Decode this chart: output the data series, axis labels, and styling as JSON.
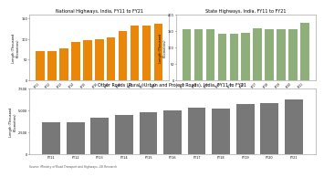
{
  "nh_title": "National Highways, India, FY11 to FY21",
  "sh_title": "State Highways, India, FY11 to FY21",
  "or_title": "Other Roads (Rural,  Urban and Project Roads), India, FY11 to FY21",
  "source": "Source: Ministry of Road Transport and Highways, LSI Research",
  "years": [
    "FY11",
    "FY12",
    "FY13",
    "FY14",
    "FY15",
    "FY16",
    "FY17",
    "FY18",
    "FY19",
    "FY20",
    "FY21"
  ],
  "nh_values": [
    70,
    70,
    77,
    92,
    97,
    100,
    105,
    120,
    132,
    133,
    137
  ],
  "sh_values": [
    155,
    155,
    156,
    141,
    142,
    143,
    158,
    154,
    154,
    155,
    175
  ],
  "or_values": [
    3700,
    3700,
    4200,
    4500,
    4800,
    5000,
    5300,
    5200,
    5700,
    5800,
    6200
  ],
  "nh_color": "#E8870A",
  "sh_color": "#8FAF7A",
  "or_color": "#787878",
  "ylabel_nh": "Length (Thousand\nKilometres)",
  "ylabel_sh": "Length (Thousand\nKilometres)",
  "ylabel_or": "Length (Thousand\nKilometres)",
  "nh_ylim": [
    0,
    160
  ],
  "sh_ylim": [
    0,
    200
  ],
  "or_ylim": [
    0,
    7500
  ],
  "nh_yticks": [
    0,
    50,
    100,
    150
  ],
  "sh_yticks": [
    0,
    50,
    100,
    150,
    200
  ],
  "or_yticks": [
    0,
    2500,
    5000,
    7500
  ],
  "bg_color": "#FFFFFF",
  "panel_bg": "#FFFFFF"
}
